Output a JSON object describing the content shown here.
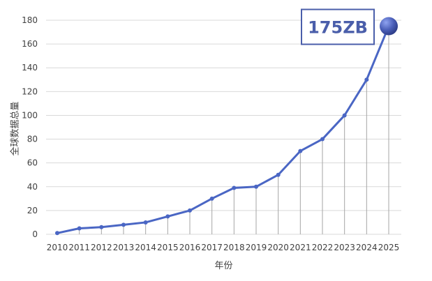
{
  "chart_data": {
    "type": "line",
    "title": "",
    "xlabel": "年份",
    "ylabel": "全球数据总量",
    "categories": [
      "2010",
      "2011",
      "2012",
      "2013",
      "2014",
      "2015",
      "2016",
      "2017",
      "2018",
      "2019",
      "2020",
      "2021",
      "2022",
      "2023",
      "2024",
      "2025"
    ],
    "series": [
      {
        "values": [
          1,
          5,
          6,
          8,
          10,
          15,
          20,
          30,
          39,
          40,
          50,
          70,
          80,
          100,
          130,
          175
        ]
      }
    ],
    "ylim": [
      0,
      180
    ],
    "yticks": [
      0,
      20,
      40,
      60,
      80,
      100,
      120,
      140,
      160,
      180
    ],
    "grid": true,
    "legend": "none",
    "drop_lines": true,
    "annotation": {
      "text": "175ZB",
      "category": "2025"
    },
    "colors": {
      "line": "#4a66c4",
      "marker_big": "#4a5eb8",
      "grid": "#d9d9d9",
      "drop_line": "#a6a6a6",
      "callout_border": "#4a5eaa"
    }
  }
}
